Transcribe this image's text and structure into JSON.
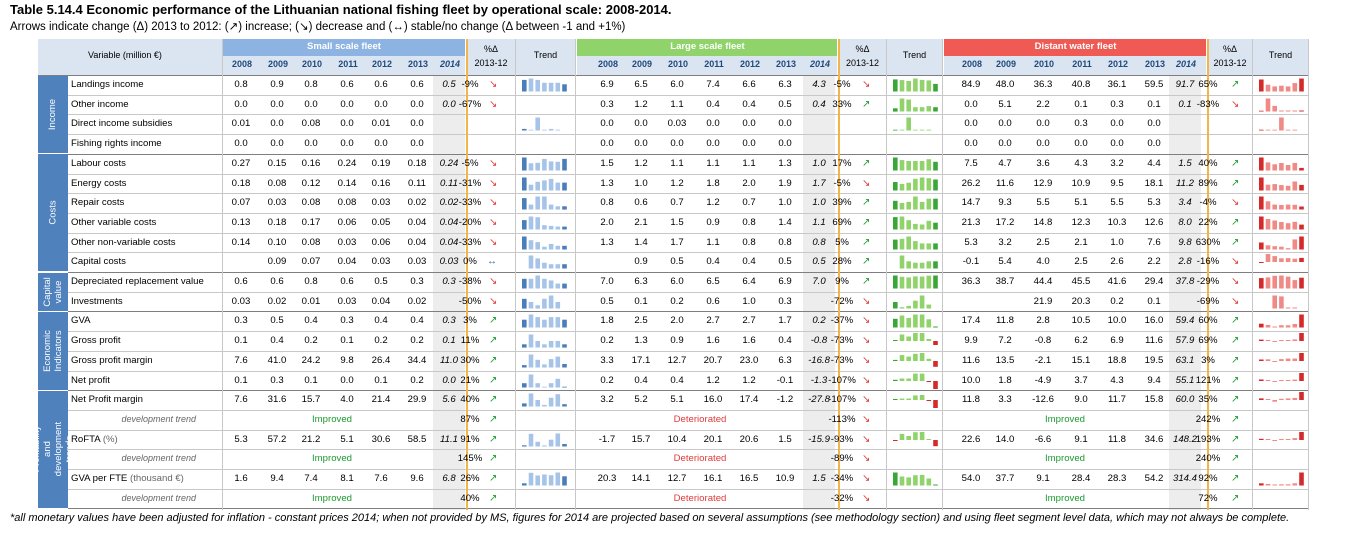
{
  "title": "Table 5.14.4 Economic performance of the Lithuanian national fishing fleet by operational scale: 2008-2014.",
  "subtitle": "Arrows indicate change (Δ) 2013 to 2012: (↗) increase; (↘) decrease and (↔) stable/no change (Δ between -1 and +1%)",
  "footnote": "*all monetary values have been adjusted for inflation - constant prices 2014; when not provided by MS, figures for 2014 are projected based on several assumptions (see methodology section) and using fleet segment level data, which may not always be complete.",
  "headers": {
    "variable": "Variable (million €)",
    "pct": "%Δ",
    "pct_sub": "2013-12",
    "trend": "Trend",
    "years": [
      "2008",
      "2009",
      "2010",
      "2011",
      "2012",
      "2013",
      "2014"
    ]
  },
  "fleets": [
    {
      "name": "Small scale fleet",
      "color": "#8db3e2",
      "bar_color": "#4a7ebb",
      "light_color": "#a6c4e8"
    },
    {
      "name": "Large scale fleet",
      "color": "#8fd36a",
      "bar_color": "#3aa63a",
      "light_color": "#8fd36a"
    },
    {
      "name": "Distant water fleet",
      "color": "#ef5a55",
      "bar_color": "#d42a2a",
      "light_color": "#ef8a86"
    }
  ],
  "colors": {
    "category_band": "#4f81bd",
    "header_band": "#dbe5f1",
    "year2014_band": "#ededed",
    "divider": "#f3b54a",
    "up": "#1a9a2e",
    "down": "#e23b3b",
    "stable": "#2e5ea8"
  },
  "categories": [
    {
      "label": "Income",
      "rows": [
        0,
        3
      ]
    },
    {
      "label": "Costs",
      "rows": [
        4,
        9
      ]
    },
    {
      "label": "Capital value",
      "rows": [
        10,
        11
      ]
    },
    {
      "label": "Economic Indicators",
      "rows": [
        12,
        15
      ]
    },
    {
      "label": "Profitability and development trends",
      "rows": [
        16,
        21
      ]
    }
  ],
  "rows": [
    {
      "label": "Landings income",
      "v": [
        [
          "0.8",
          "0.9",
          "0.8",
          "0.6",
          "0.6",
          "0.6",
          "0.5",
          "-9%",
          "dn"
        ],
        [
          "6.9",
          "6.5",
          "6.0",
          "7.4",
          "6.6",
          "6.3",
          "4.3",
          "-5%",
          "dn"
        ],
        [
          "84.9",
          "48.0",
          "36.3",
          "40.8",
          "36.1",
          "59.5",
          "91.7",
          "65%",
          "up"
        ]
      ]
    },
    {
      "label": "Other income",
      "v": [
        [
          "0.0",
          "0.0",
          "0.0",
          "0.0",
          "0.0",
          "0.0",
          "0.0",
          "-67%",
          "dn"
        ],
        [
          "0.3",
          "1.2",
          "1.1",
          "0.4",
          "0.4",
          "0.5",
          "0.4",
          "33%",
          "up"
        ],
        [
          "0.0",
          "5.1",
          "2.2",
          "0.1",
          "0.3",
          "0.1",
          "0.1",
          "-83%",
          "dn"
        ]
      ]
    },
    {
      "label": "Direct income subsidies",
      "v": [
        [
          "0.01",
          "0.0",
          "0.08",
          "0.0",
          "0.01",
          "0.0",
          "",
          "",
          ""
        ],
        [
          "0.0",
          "0.0",
          "0.03",
          "0.0",
          "0.0",
          "0.0",
          "",
          "",
          ""
        ],
        [
          "0.0",
          "0.0",
          "0.0",
          "0.3",
          "0.0",
          "0.0",
          "",
          "",
          ""
        ]
      ]
    },
    {
      "label": "Fishing rights income",
      "v": [
        [
          "0.0",
          "0.0",
          "0.0",
          "0.0",
          "0.0",
          "0.0",
          "",
          "",
          ""
        ],
        [
          "0.0",
          "0.0",
          "0.0",
          "0.0",
          "0.0",
          "0.0",
          "",
          "",
          ""
        ],
        [
          "0.0",
          "0.0",
          "0.0",
          "0.0",
          "0.0",
          "0.0",
          "",
          "",
          ""
        ]
      ]
    },
    {
      "label": "Labour costs",
      "v": [
        [
          "0.27",
          "0.15",
          "0.16",
          "0.24",
          "0.19",
          "0.18",
          "0.24",
          "-5%",
          "dn"
        ],
        [
          "1.5",
          "1.2",
          "1.1",
          "1.1",
          "1.1",
          "1.3",
          "1.0",
          "17%",
          "up"
        ],
        [
          "7.5",
          "4.7",
          "3.6",
          "4.3",
          "3.2",
          "4.4",
          "1.5",
          "40%",
          "up"
        ]
      ]
    },
    {
      "label": "Energy costs",
      "v": [
        [
          "0.18",
          "0.08",
          "0.12",
          "0.14",
          "0.16",
          "0.11",
          "0.11",
          "-31%",
          "dn"
        ],
        [
          "1.3",
          "1.0",
          "1.2",
          "1.8",
          "2.0",
          "1.9",
          "1.7",
          "-5%",
          "dn"
        ],
        [
          "26.2",
          "11.6",
          "12.9",
          "10.9",
          "9.5",
          "18.1",
          "11.2",
          "89%",
          "up"
        ]
      ]
    },
    {
      "label": "Repair costs",
      "v": [
        [
          "0.07",
          "0.03",
          "0.08",
          "0.08",
          "0.03",
          "0.02",
          "0.02",
          "-33%",
          "dn"
        ],
        [
          "0.8",
          "0.6",
          "0.7",
          "1.2",
          "0.7",
          "1.0",
          "1.0",
          "39%",
          "up"
        ],
        [
          "14.7",
          "9.3",
          "5.5",
          "5.1",
          "5.5",
          "5.3",
          "3.4",
          "-4%",
          "dn"
        ]
      ]
    },
    {
      "label": "Other variable costs",
      "v": [
        [
          "0.13",
          "0.18",
          "0.17",
          "0.06",
          "0.05",
          "0.04",
          "0.04",
          "-20%",
          "dn"
        ],
        [
          "2.0",
          "2.1",
          "1.5",
          "0.9",
          "0.8",
          "1.4",
          "1.1",
          "69%",
          "up"
        ],
        [
          "21.3",
          "17.2",
          "14.8",
          "12.3",
          "10.3",
          "12.6",
          "8.0",
          "22%",
          "up"
        ]
      ]
    },
    {
      "label": "Other non-variable costs",
      "v": [
        [
          "0.14",
          "0.10",
          "0.08",
          "0.03",
          "0.06",
          "0.04",
          "0.04",
          "-33%",
          "dn"
        ],
        [
          "1.3",
          "1.4",
          "1.7",
          "1.1",
          "0.8",
          "0.8",
          "0.8",
          "5%",
          "up"
        ],
        [
          "5.3",
          "3.2",
          "2.5",
          "2.1",
          "1.0",
          "7.6",
          "9.8",
          "630%",
          "up"
        ]
      ]
    },
    {
      "label": "Capital costs",
      "v": [
        [
          "",
          "0.09",
          "0.07",
          "0.04",
          "0.03",
          "0.03",
          "0.03",
          "0%",
          "st"
        ],
        [
          "",
          "0.9",
          "0.5",
          "0.4",
          "0.4",
          "0.5",
          "0.5",
          "28%",
          "up"
        ],
        [
          "-0.1",
          "5.4",
          "4.0",
          "2.5",
          "2.6",
          "2.2",
          "2.8",
          "-16%",
          "dn"
        ]
      ]
    },
    {
      "label": "Depreciated replacement value",
      "v": [
        [
          "0.6",
          "0.6",
          "0.8",
          "0.6",
          "0.5",
          "0.3",
          "0.3",
          "-38%",
          "dn"
        ],
        [
          "7.0",
          "6.3",
          "6.0",
          "6.5",
          "6.4",
          "6.9",
          "7.0",
          "9%",
          "up"
        ],
        [
          "36.3",
          "38.7",
          "44.4",
          "45.5",
          "41.6",
          "29.4",
          "37.8",
          "-29%",
          "dn"
        ]
      ]
    },
    {
      "label": "Investments",
      "v": [
        [
          "0.03",
          "0.02",
          "0.01",
          "0.03",
          "0.04",
          "0.02",
          "",
          "-50%",
          "dn"
        ],
        [
          "0.5",
          "0.1",
          "0.2",
          "0.6",
          "1.0",
          "0.3",
          "",
          "-72%",
          "dn"
        ],
        [
          "",
          "",
          "21.9",
          "20.3",
          "0.2",
          "0.1",
          "",
          "-69%",
          "dn"
        ]
      ]
    },
    {
      "label": "GVA",
      "v": [
        [
          "0.3",
          "0.5",
          "0.4",
          "0.3",
          "0.4",
          "0.4",
          "0.3",
          "3%",
          "up"
        ],
        [
          "1.8",
          "2.5",
          "2.0",
          "2.7",
          "2.7",
          "1.7",
          "0.2",
          "-37%",
          "dn"
        ],
        [
          "17.4",
          "11.8",
          "2.8",
          "10.5",
          "10.0",
          "16.0",
          "59.4",
          "60%",
          "up"
        ]
      ]
    },
    {
      "label": "Gross profit",
      "v": [
        [
          "0.1",
          "0.4",
          "0.2",
          "0.1",
          "0.2",
          "0.2",
          "0.1",
          "11%",
          "up"
        ],
        [
          "0.2",
          "1.3",
          "0.9",
          "1.6",
          "1.6",
          "0.4",
          "-0.8",
          "-73%",
          "dn"
        ],
        [
          "9.9",
          "7.2",
          "-0.8",
          "6.2",
          "6.9",
          "11.6",
          "57.9",
          "69%",
          "up"
        ]
      ]
    },
    {
      "label": "Gross profit margin",
      "v": [
        [
          "7.6",
          "41.0",
          "24.2",
          "9.8",
          "26.4",
          "34.4",
          "11.0",
          "30%",
          "up"
        ],
        [
          "3.3",
          "17.1",
          "12.7",
          "20.7",
          "23.0",
          "6.3",
          "-16.8",
          "-73%",
          "dn"
        ],
        [
          "11.6",
          "13.5",
          "-2.1",
          "15.1",
          "18.8",
          "19.5",
          "63.1",
          "3%",
          "up"
        ]
      ]
    },
    {
      "label": "Net profit",
      "v": [
        [
          "0.1",
          "0.3",
          "0.1",
          "0.0",
          "0.1",
          "0.2",
          "0.0",
          "21%",
          "up"
        ],
        [
          "0.2",
          "0.4",
          "0.4",
          "1.2",
          "1.2",
          "-0.1",
          "-1.3",
          "-107%",
          "dn"
        ],
        [
          "10.0",
          "1.8",
          "-4.9",
          "3.7",
          "4.3",
          "9.4",
          "55.1",
          "121%",
          "up"
        ]
      ]
    },
    {
      "label": "Net Profit margin",
      "v": [
        [
          "7.6",
          "31.6",
          "15.7",
          "4.0",
          "21.4",
          "29.9",
          "5.6",
          "40%",
          "up"
        ],
        [
          "3.2",
          "5.2",
          "5.1",
          "16.0",
          "17.4",
          "-1.2",
          "-27.8",
          "-107%",
          "dn"
        ],
        [
          "11.8",
          "3.3",
          "-12.6",
          "9.0",
          "11.7",
          "15.8",
          "60.0",
          "35%",
          "up"
        ]
      ]
    },
    {
      "dev": true,
      "label": "development trend",
      "v": [
        [
          "Improved",
          "87%",
          "up"
        ],
        [
          "Deteriorated",
          "-113%",
          "dn"
        ],
        [
          "Improved",
          "242%",
          "up"
        ]
      ]
    },
    {
      "label": "RoFTA",
      "label_sub": " (%)",
      "v": [
        [
          "5.3",
          "57.2",
          "21.2",
          "5.1",
          "30.6",
          "58.5",
          "11.1",
          "91%",
          "up"
        ],
        [
          "-1.7",
          "15.7",
          "10.4",
          "20.1",
          "20.6",
          "1.5",
          "-15.9",
          "-93%",
          "dn"
        ],
        [
          "22.6",
          "14.0",
          "-6.6",
          "9.1",
          "11.8",
          "34.6",
          "148.2",
          "193%",
          "up"
        ]
      ]
    },
    {
      "dev": true,
      "label": "development trend",
      "v": [
        [
          "Improved",
          "145%",
          "up"
        ],
        [
          "Deteriorated",
          "-89%",
          "dn"
        ],
        [
          "Improved",
          "240%",
          "up"
        ]
      ]
    },
    {
      "label": "GVA per FTE",
      "label_sub": " (thousand €)",
      "v": [
        [
          "1.6",
          "9.4",
          "7.4",
          "8.1",
          "7.6",
          "9.6",
          "6.8",
          "26%",
          "up"
        ],
        [
          "20.3",
          "14.1",
          "12.7",
          "16.1",
          "16.5",
          "10.9",
          "1.5",
          "-34%",
          "dn"
        ],
        [
          "54.0",
          "37.7",
          "9.1",
          "28.4",
          "28.3",
          "54.2",
          "314.4",
          "92%",
          "up"
        ]
      ]
    },
    {
      "dev": true,
      "label": "development trend",
      "v": [
        [
          "Improved",
          "40%",
          "up"
        ],
        [
          "Deteriorated",
          "-32%",
          "dn"
        ],
        [
          "Improved",
          "72%",
          "up"
        ]
      ]
    }
  ]
}
